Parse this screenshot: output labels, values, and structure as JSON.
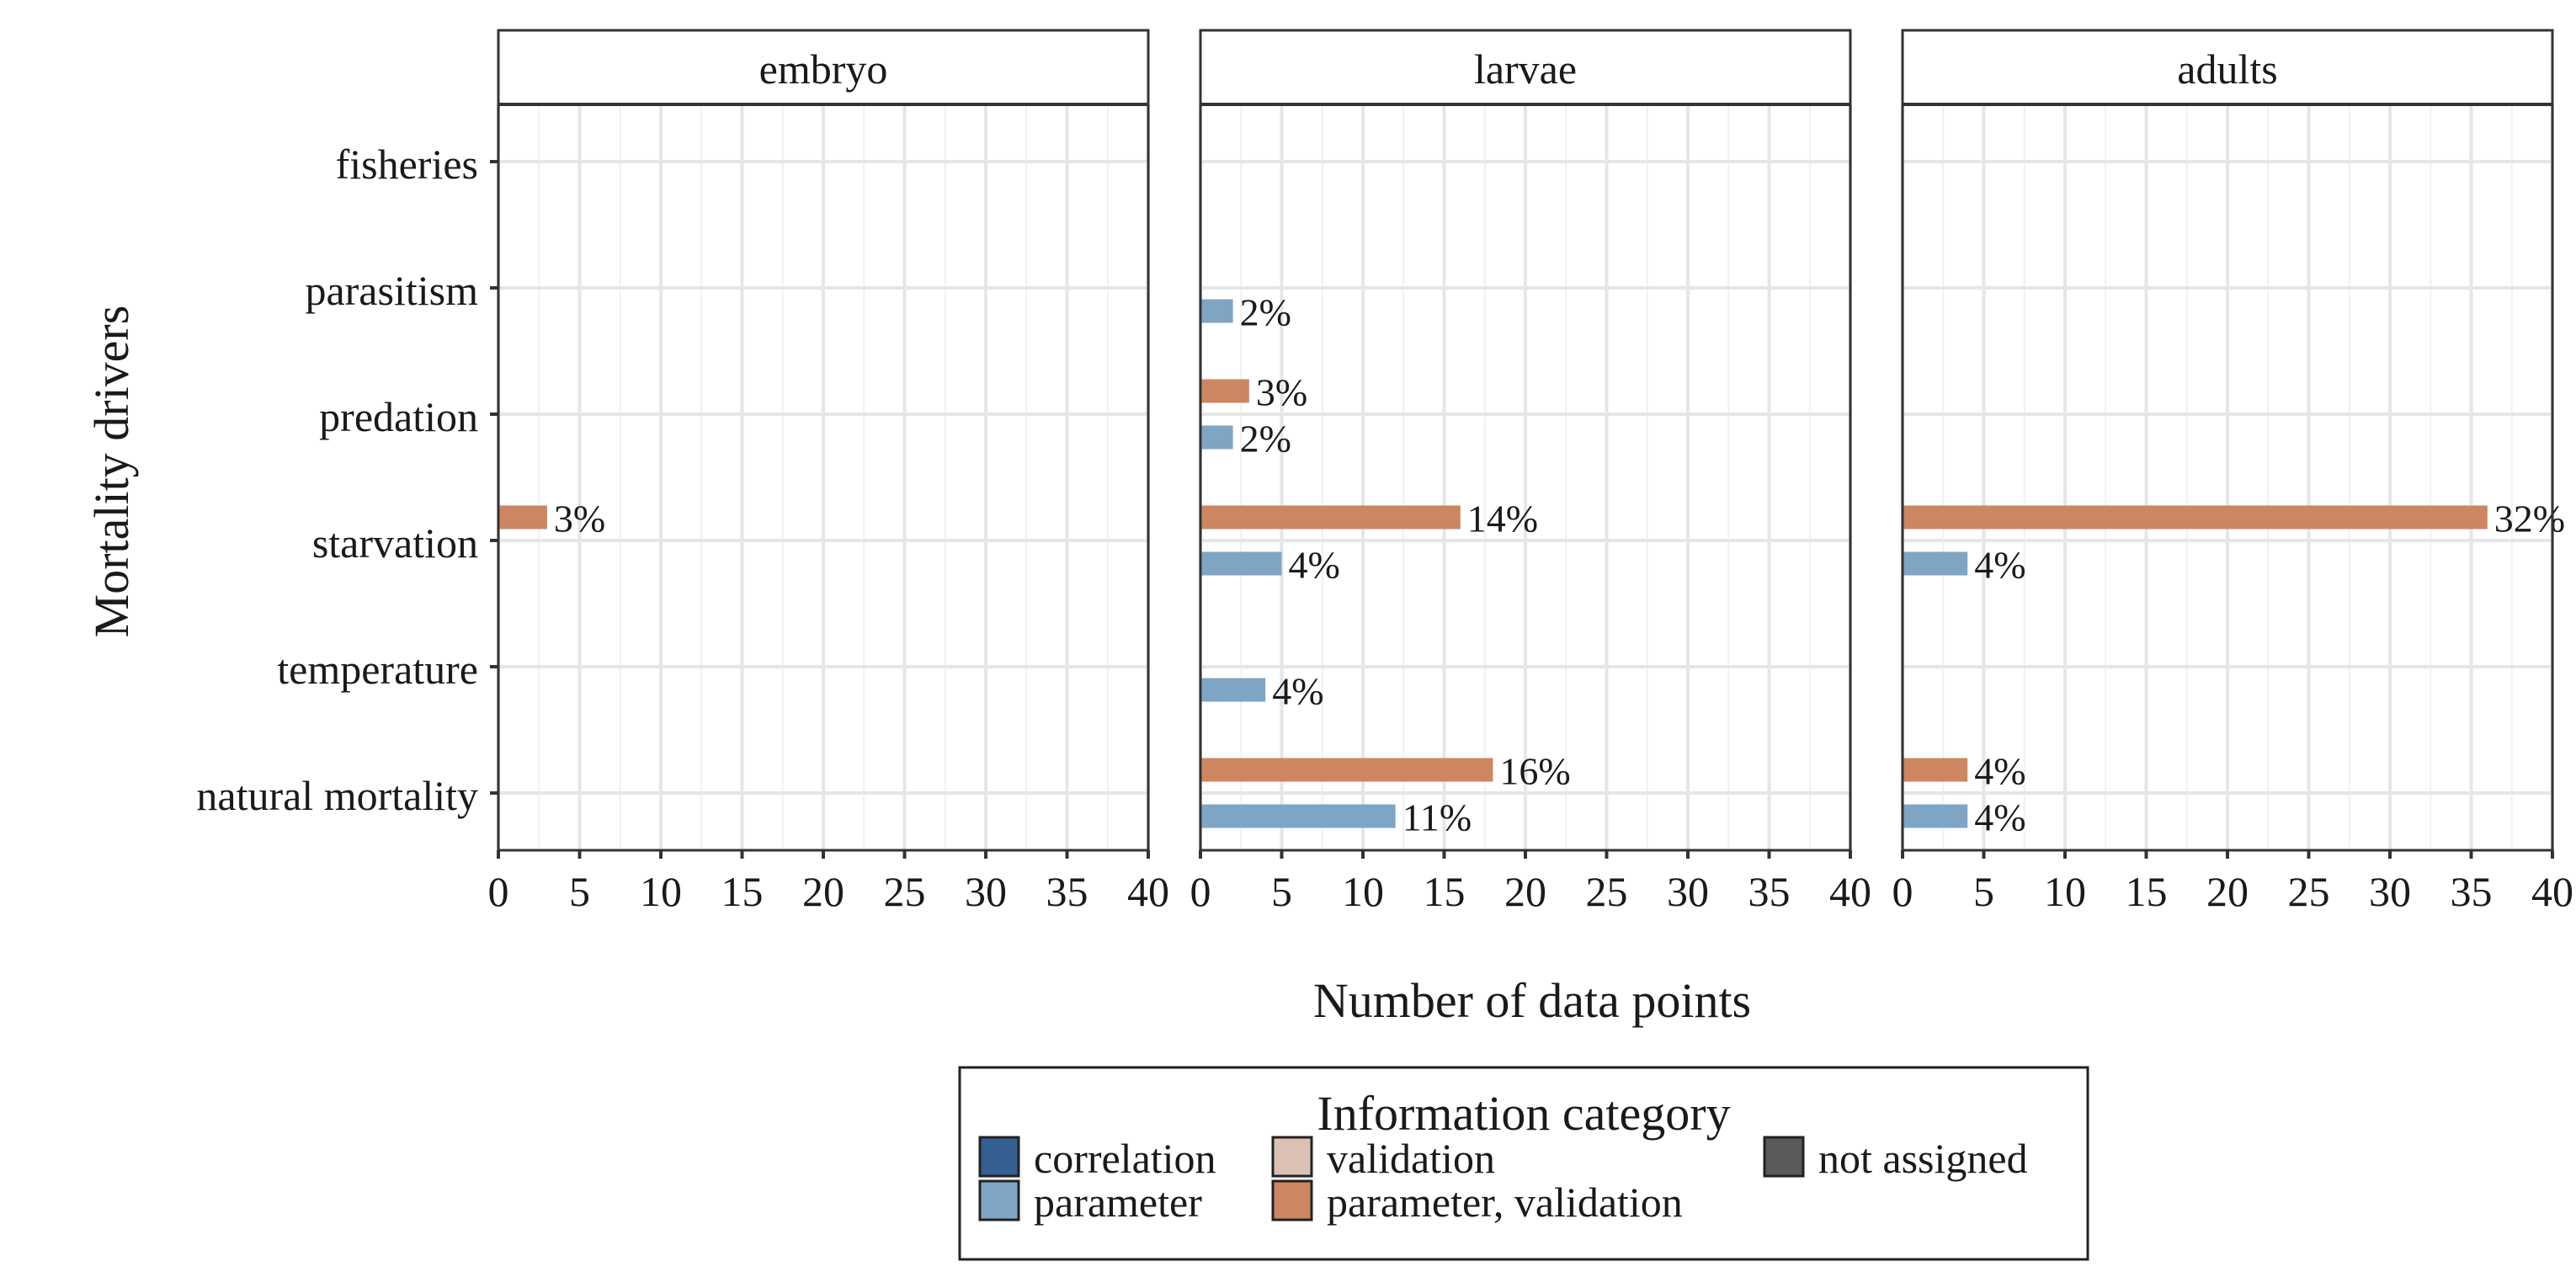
{
  "chart_data": {
    "type": "bar",
    "orientation": "horizontal",
    "xlabel": "Number of data points",
    "ylabel": "Mortality drivers",
    "xlim": [
      0,
      40
    ],
    "xticks": [
      0,
      5,
      10,
      15,
      20,
      25,
      30,
      35,
      40
    ],
    "grid": true,
    "categories": [
      "fisheries",
      "parasitism",
      "predation",
      "starvation",
      "temperature",
      "natural mortality"
    ],
    "panels": [
      {
        "name": "embryo",
        "bars": [
          {
            "category": "starvation",
            "series": "parameter, validation",
            "value": 3,
            "label": "3%"
          }
        ]
      },
      {
        "name": "larvae",
        "bars": [
          {
            "category": "parasitism",
            "series": "parameter",
            "value": 2,
            "label": "2%"
          },
          {
            "category": "predation",
            "series": "parameter, validation",
            "value": 3,
            "label": "3%"
          },
          {
            "category": "predation",
            "series": "parameter",
            "value": 2,
            "label": "2%"
          },
          {
            "category": "starvation",
            "series": "parameter, validation",
            "value": 16,
            "label": "14%"
          },
          {
            "category": "starvation",
            "series": "parameter",
            "value": 5,
            "label": "4%"
          },
          {
            "category": "temperature",
            "series": "parameter",
            "value": 4,
            "label": "4%"
          },
          {
            "category": "natural mortality",
            "series": "parameter, validation",
            "value": 18,
            "label": "16%"
          },
          {
            "category": "natural mortality",
            "series": "parameter",
            "value": 12,
            "label": "11%"
          }
        ]
      },
      {
        "name": "adults",
        "bars": [
          {
            "category": "starvation",
            "series": "parameter, validation",
            "value": 36,
            "label": "32%"
          },
          {
            "category": "starvation",
            "series": "parameter",
            "value": 4,
            "label": "4%"
          },
          {
            "category": "natural mortality",
            "series": "parameter, validation",
            "value": 4,
            "label": "4%"
          },
          {
            "category": "natural mortality",
            "series": "parameter",
            "value": 4,
            "label": "4%"
          }
        ]
      }
    ],
    "legend": {
      "title": "Information category",
      "placement": "bottom",
      "items": [
        {
          "name": "correlation",
          "color": "#335f91"
        },
        {
          "name": "parameter",
          "color": "#7fa5c4"
        },
        {
          "name": "validation",
          "color": "#dbc1b3"
        },
        {
          "name": "parameter, validation",
          "color": "#cd8661"
        },
        {
          "name": "not assigned",
          "color": "#5a5a5a"
        }
      ]
    }
  }
}
